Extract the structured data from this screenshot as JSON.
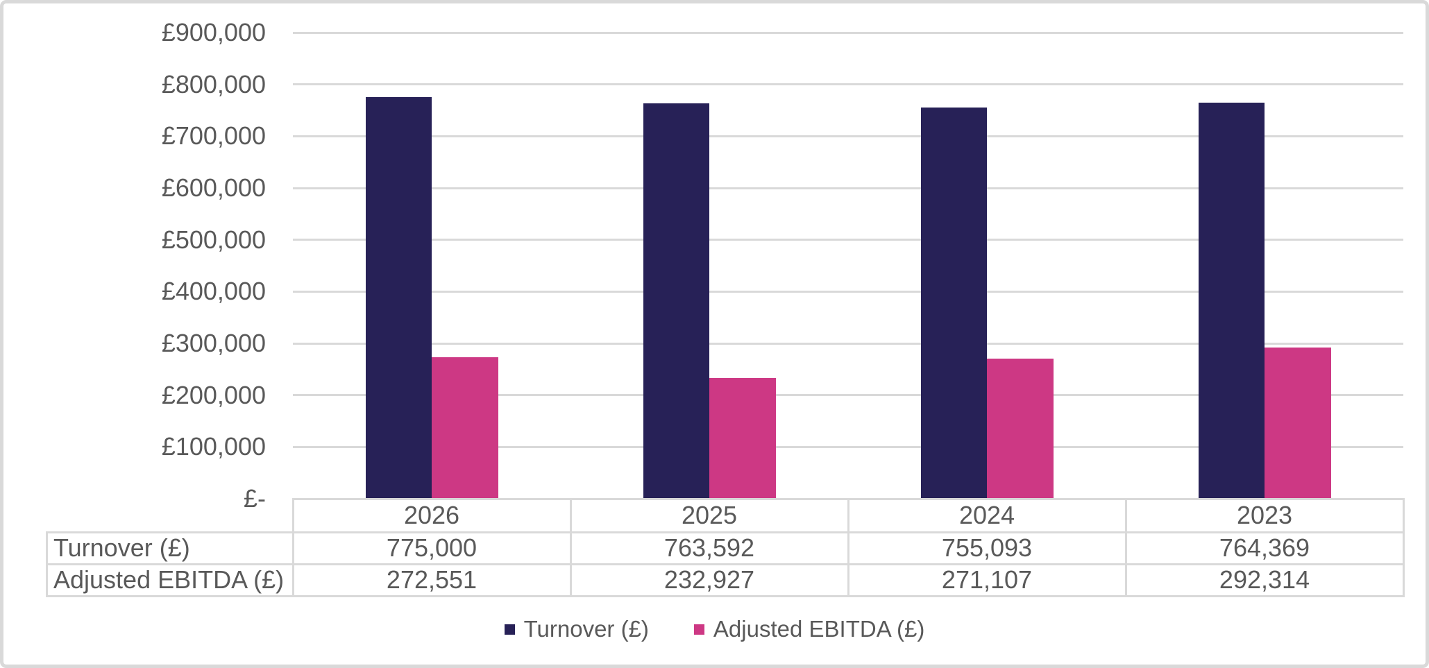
{
  "chart_data": {
    "type": "bar",
    "title": "",
    "categories": [
      "2026",
      "2025",
      "2024",
      "2023"
    ],
    "series": [
      {
        "name": "Turnover (£)",
        "color": "#272157",
        "values": [
          775000,
          763592,
          755093,
          764369
        ],
        "formatted": [
          "775,000",
          "763,592",
          "755,093",
          "764,369"
        ]
      },
      {
        "name": "Adjusted EBITDA (£)",
        "color": "#CD3884",
        "values": [
          272551,
          232927,
          271107,
          292314
        ],
        "formatted": [
          "272,551",
          "232,927",
          "271,107",
          "292,314"
        ]
      }
    ],
    "ylim": [
      0,
      900000
    ],
    "y_ticks": [
      {
        "value": 900000,
        "label": "£900,000"
      },
      {
        "value": 800000,
        "label": "£800,000"
      },
      {
        "value": 700000,
        "label": "£700,000"
      },
      {
        "value": 600000,
        "label": "£600,000"
      },
      {
        "value": 500000,
        "label": "£500,000"
      },
      {
        "value": 400000,
        "label": "£400,000"
      },
      {
        "value": 300000,
        "label": "£300,000"
      },
      {
        "value": 200000,
        "label": "£200,000"
      },
      {
        "value": 100000,
        "label": "£100,000"
      },
      {
        "value": 0,
        "label": "£-"
      }
    ],
    "grid": "horizontal",
    "legend_position": "bottom",
    "data_table_shown": true
  },
  "colors": {
    "grid": "#D9D9D9",
    "border": "#D9D9D9",
    "text": "#595959",
    "background": "#FFFFFF",
    "series_turnover": "#272157",
    "series_ebitda": "#CD3884"
  }
}
